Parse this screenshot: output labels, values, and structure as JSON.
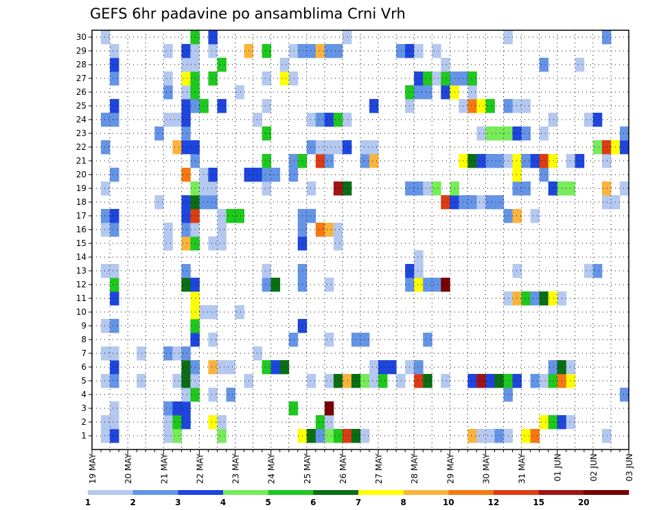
{
  "chart_data": {
    "type": "heatmap",
    "title": "GEFS 6hr padavine po ansamblima Crni Vrh",
    "xlabel": "",
    "ylabel": "",
    "y_tick_labels": [
      "1",
      "2",
      "3",
      "4",
      "5",
      "6",
      "7",
      "8",
      "9",
      "10",
      "11",
      "12",
      "13",
      "14",
      "15",
      "16",
      "17",
      "18",
      "19",
      "20",
      "21",
      "22",
      "23",
      "24",
      "25",
      "26",
      "27",
      "28",
      "29",
      "30"
    ],
    "x_tick_labels": [
      "19 MAY",
      "20 MAY",
      "21 MAY",
      "22 MAY",
      "23 MAY",
      "24 MAY",
      "25 MAY",
      "26 MAY",
      "27 MAY",
      "28 MAY",
      "29 MAY",
      "30 MAY",
      "31 MAY",
      "01 JUN",
      "02 JUN",
      "03 JUN"
    ],
    "x_range_steps": [
      0,
      60
    ],
    "y_range_members": [
      1,
      30
    ],
    "grid": true,
    "colorbar": {
      "labels": [
        "1",
        "2",
        "3",
        "4",
        "5",
        "6",
        "7",
        "8",
        "10",
        "12",
        "15",
        "20"
      ],
      "colors": [
        "#b4c8f0",
        "#6494e6",
        "#1e46dc",
        "#78eb5a",
        "#1ec81e",
        "#0a6e14",
        "#ffff00",
        "#fab43c",
        "#f57814",
        "#dc3c14",
        "#a01414",
        "#780000"
      ]
    },
    "cells_format": "member: [[step, color_index], ...]",
    "cells": {
      "1": [
        [
          1,
          0
        ],
        [
          2,
          2
        ],
        [
          8,
          0
        ],
        [
          9,
          3
        ],
        [
          14,
          3
        ],
        [
          23,
          6
        ],
        [
          24,
          5
        ],
        [
          25,
          1
        ],
        [
          26,
          3
        ],
        [
          27,
          4
        ],
        [
          28,
          9
        ],
        [
          29,
          5
        ],
        [
          30,
          0
        ],
        [
          42,
          7
        ],
        [
          43,
          0
        ],
        [
          44,
          0
        ],
        [
          45,
          1
        ],
        [
          46,
          0
        ],
        [
          48,
          6
        ],
        [
          49,
          8
        ],
        [
          57,
          0
        ]
      ],
      "2": [
        [
          1,
          0
        ],
        [
          2,
          0
        ],
        [
          8,
          0
        ],
        [
          9,
          4
        ],
        [
          10,
          2
        ],
        [
          13,
          6
        ],
        [
          14,
          0
        ],
        [
          25,
          4
        ],
        [
          26,
          0
        ],
        [
          50,
          6
        ],
        [
          51,
          4
        ],
        [
          52,
          2
        ],
        [
          53,
          0
        ]
      ],
      "3": [
        [
          2,
          0
        ],
        [
          8,
          1
        ],
        [
          9,
          2
        ],
        [
          10,
          2
        ],
        [
          22,
          4
        ],
        [
          26,
          11
        ]
      ],
      "4": [
        [
          10,
          0
        ],
        [
          11,
          4
        ],
        [
          13,
          0
        ],
        [
          15,
          1
        ],
        [
          46,
          1
        ],
        [
          59,
          1
        ]
      ],
      "5": [
        [
          1,
          0
        ],
        [
          2,
          1
        ],
        [
          5,
          0
        ],
        [
          9,
          0
        ],
        [
          10,
          5
        ],
        [
          11,
          0
        ],
        [
          17,
          0
        ],
        [
          24,
          0
        ],
        [
          26,
          0
        ],
        [
          27,
          5
        ],
        [
          28,
          7
        ],
        [
          29,
          5
        ],
        [
          30,
          3
        ],
        [
          31,
          0
        ],
        [
          32,
          4
        ],
        [
          34,
          0
        ],
        [
          36,
          9
        ],
        [
          37,
          5
        ],
        [
          39,
          0
        ],
        [
          42,
          2
        ],
        [
          43,
          10
        ],
        [
          44,
          2
        ],
        [
          45,
          5
        ],
        [
          46,
          4
        ],
        [
          47,
          2
        ],
        [
          49,
          1
        ],
        [
          50,
          0
        ],
        [
          51,
          4
        ],
        [
          52,
          8
        ],
        [
          53,
          6
        ]
      ],
      "6": [
        [
          2,
          2
        ],
        [
          10,
          5
        ],
        [
          11,
          1
        ],
        [
          13,
          7
        ],
        [
          14,
          0
        ],
        [
          15,
          0
        ],
        [
          19,
          4
        ],
        [
          20,
          2
        ],
        [
          21,
          5
        ],
        [
          31,
          0
        ],
        [
          32,
          2
        ],
        [
          33,
          2
        ],
        [
          35,
          0
        ],
        [
          36,
          1
        ],
        [
          51,
          1
        ],
        [
          52,
          5
        ],
        [
          53,
          0
        ]
      ],
      "7": [
        [
          1,
          0
        ],
        [
          2,
          0
        ],
        [
          5,
          0
        ],
        [
          8,
          1
        ],
        [
          9,
          0
        ],
        [
          10,
          1
        ],
        [
          18,
          0
        ]
      ],
      "8": [
        [
          11,
          2
        ],
        [
          13,
          0
        ],
        [
          22,
          1
        ],
        [
          26,
          0
        ],
        [
          29,
          1
        ],
        [
          30,
          1
        ],
        [
          37,
          1
        ]
      ],
      "9": [
        [
          1,
          0
        ],
        [
          2,
          1
        ],
        [
          11,
          4
        ],
        [
          23,
          2
        ]
      ],
      "10": [
        [
          11,
          6
        ],
        [
          12,
          0
        ],
        [
          13,
          0
        ],
        [
          16,
          0
        ]
      ],
      "11": [
        [
          2,
          2
        ],
        [
          11,
          6
        ],
        [
          46,
          0
        ],
        [
          47,
          7
        ],
        [
          48,
          4
        ],
        [
          49,
          1
        ],
        [
          50,
          5
        ],
        [
          51,
          6
        ],
        [
          52,
          0
        ]
      ],
      "12": [
        [
          2,
          4
        ],
        [
          10,
          5
        ],
        [
          11,
          2
        ],
        [
          19,
          1
        ],
        [
          20,
          5
        ],
        [
          23,
          1
        ],
        [
          26,
          0
        ],
        [
          35,
          1
        ],
        [
          36,
          6
        ],
        [
          37,
          1
        ],
        [
          38,
          1
        ],
        [
          39,
          11
        ]
      ],
      "13": [
        [
          1,
          0
        ],
        [
          2,
          0
        ],
        [
          10,
          1
        ],
        [
          19,
          0
        ],
        [
          23,
          1
        ],
        [
          35,
          2
        ],
        [
          36,
          0
        ],
        [
          47,
          0
        ],
        [
          55,
          0
        ],
        [
          56,
          1
        ]
      ],
      "14": [
        [
          36,
          0
        ]
      ],
      "15": [
        [
          8,
          0
        ],
        [
          10,
          7
        ],
        [
          11,
          4
        ],
        [
          13,
          0
        ],
        [
          14,
          0
        ],
        [
          23,
          2
        ],
        [
          27,
          0
        ]
      ],
      "16": [
        [
          1,
          0
        ],
        [
          2,
          1
        ],
        [
          8,
          0
        ],
        [
          10,
          1
        ],
        [
          11,
          0
        ],
        [
          14,
          0
        ],
        [
          23,
          1
        ],
        [
          25,
          8
        ],
        [
          26,
          7
        ],
        [
          27,
          0
        ]
      ],
      "17": [
        [
          1,
          1
        ],
        [
          2,
          2
        ],
        [
          10,
          2
        ],
        [
          11,
          9
        ],
        [
          14,
          0
        ],
        [
          15,
          4
        ],
        [
          16,
          4
        ],
        [
          23,
          1
        ],
        [
          24,
          1
        ],
        [
          46,
          1
        ],
        [
          47,
          7
        ],
        [
          49,
          0
        ]
      ],
      "18": [
        [
          7,
          0
        ],
        [
          10,
          2
        ],
        [
          11,
          5
        ],
        [
          12,
          1
        ],
        [
          13,
          1
        ],
        [
          39,
          9
        ],
        [
          40,
          2
        ],
        [
          41,
          1
        ],
        [
          42,
          1
        ],
        [
          43,
          0
        ],
        [
          44,
          1
        ],
        [
          45,
          1
        ],
        [
          57,
          0
        ],
        [
          58,
          0
        ]
      ],
      "19": [
        [
          1,
          0
        ],
        [
          11,
          3
        ],
        [
          12,
          0
        ],
        [
          13,
          0
        ],
        [
          19,
          0
        ],
        [
          24,
          0
        ],
        [
          27,
          10
        ],
        [
          28,
          5
        ],
        [
          35,
          1
        ],
        [
          36,
          1
        ],
        [
          37,
          0
        ],
        [
          38,
          3
        ],
        [
          40,
          3
        ],
        [
          47,
          1
        ],
        [
          48,
          1
        ],
        [
          51,
          2
        ],
        [
          52,
          3
        ],
        [
          53,
          3
        ],
        [
          57,
          7
        ],
        [
          59,
          0
        ]
      ],
      "20": [
        [
          2,
          1
        ],
        [
          10,
          8
        ],
        [
          12,
          0
        ],
        [
          13,
          2
        ],
        [
          17,
          2
        ],
        [
          18,
          2
        ],
        [
          19,
          1
        ],
        [
          20,
          1
        ],
        [
          22,
          1
        ],
        [
          47,
          6
        ],
        [
          50,
          1
        ]
      ],
      "21": [
        [
          11,
          1
        ],
        [
          19,
          4
        ],
        [
          22,
          1
        ],
        [
          23,
          4
        ],
        [
          25,
          9
        ],
        [
          26,
          1
        ],
        [
          30,
          1
        ],
        [
          31,
          7
        ],
        [
          41,
          6
        ],
        [
          42,
          5
        ],
        [
          43,
          2
        ],
        [
          44,
          1
        ],
        [
          45,
          1
        ],
        [
          46,
          0
        ],
        [
          47,
          6
        ],
        [
          48,
          1
        ],
        [
          49,
          2
        ],
        [
          50,
          9
        ],
        [
          51,
          6
        ],
        [
          53,
          0
        ],
        [
          54,
          2
        ],
        [
          57,
          0
        ]
      ],
      "22": [
        [
          1,
          1
        ],
        [
          9,
          7
        ],
        [
          10,
          2
        ],
        [
          11,
          2
        ],
        [
          24,
          1
        ],
        [
          25,
          0
        ],
        [
          26,
          0
        ],
        [
          27,
          0
        ],
        [
          28,
          2
        ],
        [
          30,
          0
        ],
        [
          31,
          0
        ],
        [
          56,
          3
        ],
        [
          57,
          9
        ],
        [
          58,
          6
        ],
        [
          59,
          2
        ]
      ],
      "23": [
        [
          7,
          1
        ],
        [
          10,
          1
        ],
        [
          19,
          4
        ],
        [
          43,
          0
        ],
        [
          44,
          3
        ],
        [
          45,
          3
        ],
        [
          46,
          3
        ],
        [
          47,
          2
        ],
        [
          48,
          1
        ],
        [
          50,
          0
        ],
        [
          59,
          1
        ]
      ],
      "24": [
        [
          1,
          1
        ],
        [
          2,
          1
        ],
        [
          8,
          0
        ],
        [
          9,
          0
        ],
        [
          10,
          2
        ],
        [
          18,
          0
        ],
        [
          24,
          0
        ],
        [
          25,
          1
        ],
        [
          26,
          2
        ],
        [
          27,
          4
        ],
        [
          28,
          0
        ],
        [
          51,
          0
        ],
        [
          55,
          0
        ],
        [
          56,
          2
        ]
      ],
      "25": [
        [
          2,
          2
        ],
        [
          10,
          2
        ],
        [
          11,
          1
        ],
        [
          12,
          4
        ],
        [
          14,
          2
        ],
        [
          19,
          0
        ],
        [
          31,
          2
        ],
        [
          35,
          0
        ],
        [
          41,
          0
        ],
        [
          42,
          8
        ],
        [
          43,
          6
        ],
        [
          44,
          4
        ],
        [
          46,
          1
        ],
        [
          47,
          0
        ],
        [
          48,
          0
        ]
      ],
      "26": [
        [
          8,
          1
        ],
        [
          10,
          0
        ],
        [
          11,
          4
        ],
        [
          16,
          0
        ],
        [
          35,
          4
        ],
        [
          36,
          1
        ],
        [
          37,
          1
        ],
        [
          39,
          2
        ],
        [
          40,
          6
        ],
        [
          42,
          0
        ]
      ],
      "27": [
        [
          2,
          1
        ],
        [
          8,
          0
        ],
        [
          10,
          6
        ],
        [
          11,
          4
        ],
        [
          13,
          4
        ],
        [
          19,
          0
        ],
        [
          21,
          6
        ],
        [
          22,
          0
        ],
        [
          36,
          2
        ],
        [
          37,
          4
        ],
        [
          38,
          0
        ],
        [
          39,
          4
        ],
        [
          40,
          1
        ],
        [
          41,
          1
        ],
        [
          42,
          4
        ]
      ],
      "28": [
        [
          2,
          2
        ],
        [
          10,
          0
        ],
        [
          11,
          0
        ],
        [
          14,
          4
        ],
        [
          21,
          0
        ],
        [
          39,
          0
        ],
        [
          50,
          1
        ],
        [
          54,
          0
        ]
      ],
      "29": [
        [
          2,
          0
        ],
        [
          8,
          0
        ],
        [
          10,
          2
        ],
        [
          11,
          0
        ],
        [
          13,
          0
        ],
        [
          17,
          7
        ],
        [
          19,
          4
        ],
        [
          22,
          0
        ],
        [
          23,
          1
        ],
        [
          24,
          1
        ],
        [
          25,
          7
        ],
        [
          26,
          1
        ],
        [
          27,
          1
        ],
        [
          34,
          1
        ],
        [
          35,
          2
        ],
        [
          36,
          0
        ],
        [
          38,
          0
        ]
      ],
      "30": [
        [
          1,
          0
        ],
        [
          11,
          4
        ],
        [
          13,
          2
        ],
        [
          28,
          0
        ],
        [
          46,
          0
        ],
        [
          57,
          1
        ]
      ]
    }
  }
}
